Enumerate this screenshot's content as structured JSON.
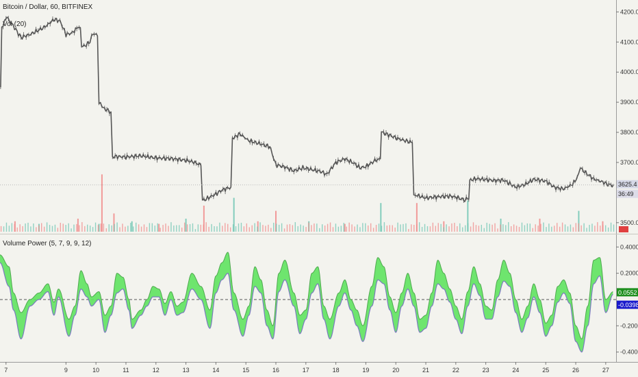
{
  "header": {
    "symbol_label": "Bitcoin / Dollar, 60, BITFINEX",
    "volume_label": "Vol (20)",
    "indicator_label": "Volume Power (5, 7, 9, 9, 12)"
  },
  "colors": {
    "background": "#f3f3ee",
    "candle": "#555555",
    "vol_up": "#6fc5b3",
    "vol_down": "#f08a8a",
    "fill_up": "#5fe35f",
    "fill_down": "#f24d4d",
    "line_a": "#7a7abf",
    "line_b": "#4fa84f",
    "zero_line": "#555555",
    "tag_green": "#1e8f1e",
    "tag_blue": "#1a1acc",
    "tag_price": "#d5d8e6",
    "tag_red": "#e04040"
  },
  "chart_data": [
    {
      "type": "candlestick",
      "title": "Bitcoin / Dollar, 60, BITFINEX",
      "x_ticks": [
        "7",
        "9",
        "10",
        "11",
        "12",
        "13",
        "14",
        "15",
        "16",
        "17",
        "18",
        "19",
        "20",
        "21",
        "22",
        "23",
        "24",
        "25",
        "26",
        "27"
      ],
      "x_tick_pos": [
        7,
        9,
        10,
        11,
        12,
        13,
        14,
        15,
        16,
        17,
        18,
        19,
        20,
        21,
        22,
        23,
        24,
        25,
        26,
        27
      ],
      "x_range": [
        6.8,
        27.3
      ],
      "y_ticks": [
        "4200.0",
        "4100.0",
        "4000.0",
        "3900.0",
        "3800.0",
        "3700.0",
        "3500.0"
      ],
      "y_tick_values": [
        4200,
        4100,
        4000,
        3900,
        3800,
        3700,
        3500
      ],
      "ylim": [
        3470,
        4235
      ],
      "last_price_tag": "3625.4",
      "last_price_value": 3625.4,
      "countdown_tag": "36:49",
      "price_path": [
        [
          6.82,
          3950
        ],
        [
          6.9,
          4150
        ],
        [
          7.0,
          4185
        ],
        [
          7.2,
          4160
        ],
        [
          7.5,
          4115
        ],
        [
          7.8,
          4125
        ],
        [
          8.0,
          4135
        ],
        [
          8.3,
          4150
        ],
        [
          8.6,
          4175
        ],
        [
          8.8,
          4170
        ],
        [
          9.0,
          4125
        ],
        [
          9.2,
          4130
        ],
        [
          9.4,
          4148
        ],
        [
          9.6,
          4085
        ],
        [
          9.8,
          4100
        ],
        [
          9.9,
          4130
        ],
        [
          10.05,
          4120
        ],
        [
          10.15,
          3895
        ],
        [
          10.25,
          3880
        ],
        [
          10.4,
          3873
        ],
        [
          10.5,
          3868
        ],
        [
          10.6,
          3720
        ],
        [
          11.0,
          3718
        ],
        [
          11.5,
          3722
        ],
        [
          12.0,
          3715
        ],
        [
          12.5,
          3713
        ],
        [
          13.0,
          3707
        ],
        [
          13.3,
          3700
        ],
        [
          13.5,
          3690
        ],
        [
          13.6,
          3575
        ],
        [
          13.8,
          3585
        ],
        [
          14.0,
          3595
        ],
        [
          14.2,
          3608
        ],
        [
          14.5,
          3618
        ],
        [
          14.6,
          3782
        ],
        [
          14.8,
          3795
        ],
        [
          15.1,
          3772
        ],
        [
          15.4,
          3764
        ],
        [
          15.8,
          3752
        ],
        [
          16.0,
          3692
        ],
        [
          16.3,
          3685
        ],
        [
          16.6,
          3672
        ],
        [
          16.9,
          3682
        ],
        [
          17.2,
          3676
        ],
        [
          17.5,
          3670
        ],
        [
          17.7,
          3660
        ],
        [
          18.0,
          3700
        ],
        [
          18.3,
          3712
        ],
        [
          18.6,
          3698
        ],
        [
          18.8,
          3682
        ],
        [
          19.0,
          3686
        ],
        [
          19.3,
          3706
        ],
        [
          19.45,
          3712
        ],
        [
          19.55,
          3800
        ],
        [
          19.8,
          3790
        ],
        [
          20.1,
          3778
        ],
        [
          20.4,
          3770
        ],
        [
          20.55,
          3766
        ],
        [
          20.65,
          3592
        ],
        [
          21.0,
          3582
        ],
        [
          21.5,
          3587
        ],
        [
          21.8,
          3588
        ],
        [
          22.0,
          3585
        ],
        [
          22.3,
          3575
        ],
        [
          22.4,
          3578
        ],
        [
          22.5,
          3642
        ],
        [
          22.7,
          3646
        ],
        [
          23.0,
          3643
        ],
        [
          23.3,
          3640
        ],
        [
          23.6,
          3641
        ],
        [
          24.0,
          3618
        ],
        [
          24.3,
          3626
        ],
        [
          24.6,
          3644
        ],
        [
          25.0,
          3638
        ],
        [
          25.3,
          3617
        ],
        [
          25.6,
          3612
        ],
        [
          25.9,
          3628
        ],
        [
          26.05,
          3650
        ],
        [
          26.15,
          3682
        ],
        [
          26.3,
          3668
        ],
        [
          26.6,
          3645
        ],
        [
          26.9,
          3635
        ],
        [
          27.1,
          3626
        ],
        [
          27.25,
          3625
        ]
      ],
      "volume_bars": [
        [
          7.3,
          0.4,
          "down"
        ],
        [
          8.1,
          0.3,
          "up"
        ],
        [
          9.4,
          0.5,
          "down"
        ],
        [
          10.1,
          0.3,
          "up"
        ],
        [
          10.2,
          2.2,
          "down"
        ],
        [
          10.6,
          0.7,
          "down"
        ],
        [
          11.2,
          0.4,
          "up"
        ],
        [
          12.1,
          0.3,
          "down"
        ],
        [
          13.0,
          0.5,
          "up"
        ],
        [
          13.6,
          1.0,
          "down"
        ],
        [
          14.6,
          1.3,
          "up"
        ],
        [
          15.4,
          0.4,
          "down"
        ],
        [
          16.0,
          0.8,
          "down"
        ],
        [
          17.1,
          0.4,
          "up"
        ],
        [
          18.3,
          0.3,
          "down"
        ],
        [
          19.5,
          1.1,
          "up"
        ],
        [
          20.7,
          1.1,
          "down"
        ],
        [
          21.6,
          0.4,
          "down"
        ],
        [
          22.4,
          1.2,
          "up"
        ],
        [
          23.5,
          0.5,
          "up"
        ],
        [
          24.8,
          0.5,
          "down"
        ],
        [
          26.1,
          0.8,
          "up"
        ],
        [
          26.9,
          0.4,
          "down"
        ]
      ]
    },
    {
      "type": "area",
      "title": "Volume Power (5, 7, 9, 9, 12)",
      "y_ticks": [
        "0.4000",
        "0.2000",
        "-0.2000",
        "-0.4000"
      ],
      "y_tick_values": [
        0.4,
        0.2,
        -0.2,
        -0.4
      ],
      "ylim": [
        -0.47,
        0.48
      ],
      "zero_reference": 0.0,
      "fast_tag": "0.0552",
      "fast_tag_value": 0.0552,
      "slow_tag": "-0.0398",
      "slow_tag_value": -0.0398,
      "series": [
        {
          "x": [
            6.8,
            7.1,
            7.25,
            7.5,
            7.8,
            8.1,
            8.4,
            8.6,
            8.75,
            9.1,
            9.3,
            9.5,
            9.7,
            9.85,
            10.1,
            10.3,
            10.5,
            10.7,
            10.9,
            11.1,
            11.2,
            11.5,
            11.7,
            11.9,
            12.1,
            12.3,
            12.5,
            12.7,
            12.9,
            13.2,
            13.5,
            13.8,
            14.0,
            14.2,
            14.4,
            14.6,
            14.9,
            15.1,
            15.3,
            15.5,
            15.7,
            15.9,
            16.1,
            16.3,
            16.6,
            16.8,
            17.0,
            17.2,
            17.4,
            17.6,
            17.8,
            18.1,
            18.3,
            18.5,
            18.7,
            18.9,
            19.2,
            19.4,
            19.6,
            19.8,
            20.0,
            20.2,
            20.4,
            20.6,
            20.8,
            21.0,
            21.2,
            21.4,
            21.6,
            21.8,
            22.0,
            22.2,
            22.4,
            22.6,
            22.8,
            23.0,
            23.2,
            23.4,
            23.6,
            23.8,
            24.0,
            24.2,
            24.4,
            24.6,
            24.8,
            25.0,
            25.2,
            25.4,
            25.6,
            25.8,
            26.0,
            26.2,
            26.4,
            26.6,
            26.8,
            27.0,
            27.25
          ],
          "name": "",
          "values": [
            0.34,
            0.25,
            0.05,
            -0.1,
            0.0,
            0.05,
            0.12,
            -0.02,
            0.08,
            -0.15,
            -0.05,
            0.22,
            0.12,
            0.02,
            0.06,
            -0.12,
            -0.05,
            0.2,
            0.17,
            0.0,
            -0.15,
            -0.08,
            0.0,
            0.1,
            0.08,
            -0.03,
            0.06,
            -0.05,
            -0.02,
            0.2,
            0.1,
            -0.08,
            0.18,
            0.28,
            0.36,
            0.05,
            -0.15,
            -0.05,
            0.25,
            0.15,
            -0.08,
            -0.2,
            0.2,
            0.3,
            0.05,
            -0.12,
            -0.08,
            0.2,
            0.25,
            -0.05,
            -0.15,
            0.05,
            0.15,
            0.0,
            -0.08,
            -0.2,
            0.1,
            0.32,
            0.25,
            0.02,
            -0.1,
            0.05,
            0.2,
            0.05,
            -0.15,
            -0.12,
            0.05,
            0.3,
            0.2,
            0.08,
            -0.05,
            -0.15,
            0.06,
            0.25,
            0.12,
            -0.05,
            -0.08,
            0.15,
            0.3,
            0.2,
            0.0,
            -0.15,
            -0.05,
            0.12,
            0.0,
            -0.18,
            -0.12,
            0.1,
            0.15,
            0.05,
            -0.2,
            -0.3,
            -0.05,
            0.3,
            0.32,
            0.0,
            0.06
          ]
        },
        {
          "x": [
            6.8,
            7.1,
            7.25,
            7.5,
            7.8,
            8.1,
            8.4,
            8.6,
            8.75,
            9.1,
            9.3,
            9.5,
            9.7,
            9.85,
            10.1,
            10.3,
            10.5,
            10.7,
            10.9,
            11.1,
            11.2,
            11.5,
            11.7,
            11.9,
            12.1,
            12.3,
            12.5,
            12.7,
            12.9,
            13.2,
            13.5,
            13.8,
            14.0,
            14.2,
            14.4,
            14.6,
            14.9,
            15.1,
            15.3,
            15.5,
            15.7,
            15.9,
            16.1,
            16.3,
            16.6,
            16.8,
            17.0,
            17.2,
            17.4,
            17.6,
            17.8,
            18.1,
            18.3,
            18.5,
            18.7,
            18.9,
            19.2,
            19.4,
            19.6,
            19.8,
            20.0,
            20.2,
            20.4,
            20.6,
            20.8,
            21.0,
            21.2,
            21.4,
            21.6,
            21.8,
            22.0,
            22.2,
            22.4,
            22.6,
            22.8,
            23.0,
            23.2,
            23.4,
            23.6,
            23.8,
            24.0,
            24.2,
            24.4,
            24.6,
            24.8,
            25.0,
            25.2,
            25.4,
            25.6,
            25.8,
            26.0,
            26.2,
            26.4,
            26.6,
            26.8,
            27.0,
            27.25
          ],
          "name": "",
          "values": [
            0.28,
            0.1,
            -0.08,
            -0.3,
            -0.05,
            0.0,
            0.06,
            -0.12,
            0.02,
            -0.28,
            -0.12,
            0.08,
            0.02,
            -0.05,
            0.0,
            -0.25,
            -0.12,
            0.05,
            0.08,
            -0.08,
            -0.22,
            -0.12,
            -0.05,
            0.02,
            0.02,
            -0.12,
            0.0,
            -0.12,
            -0.1,
            0.08,
            0.0,
            -0.22,
            0.05,
            0.15,
            0.2,
            -0.08,
            -0.28,
            -0.12,
            0.1,
            0.05,
            -0.2,
            -0.3,
            0.06,
            0.15,
            -0.05,
            -0.26,
            -0.15,
            0.05,
            0.12,
            -0.15,
            -0.3,
            -0.05,
            0.05,
            -0.08,
            -0.2,
            -0.32,
            -0.05,
            0.15,
            0.12,
            -0.08,
            -0.25,
            -0.05,
            0.08,
            -0.05,
            -0.25,
            -0.22,
            -0.05,
            0.12,
            0.08,
            -0.02,
            -0.15,
            -0.26,
            -0.05,
            0.12,
            0.03,
            -0.15,
            -0.15,
            0.02,
            0.14,
            0.1,
            -0.1,
            -0.25,
            -0.14,
            0.02,
            -0.1,
            -0.28,
            -0.2,
            -0.02,
            0.05,
            -0.03,
            -0.32,
            -0.4,
            -0.2,
            0.12,
            0.18,
            -0.1,
            0.04
          ]
        }
      ]
    }
  ]
}
